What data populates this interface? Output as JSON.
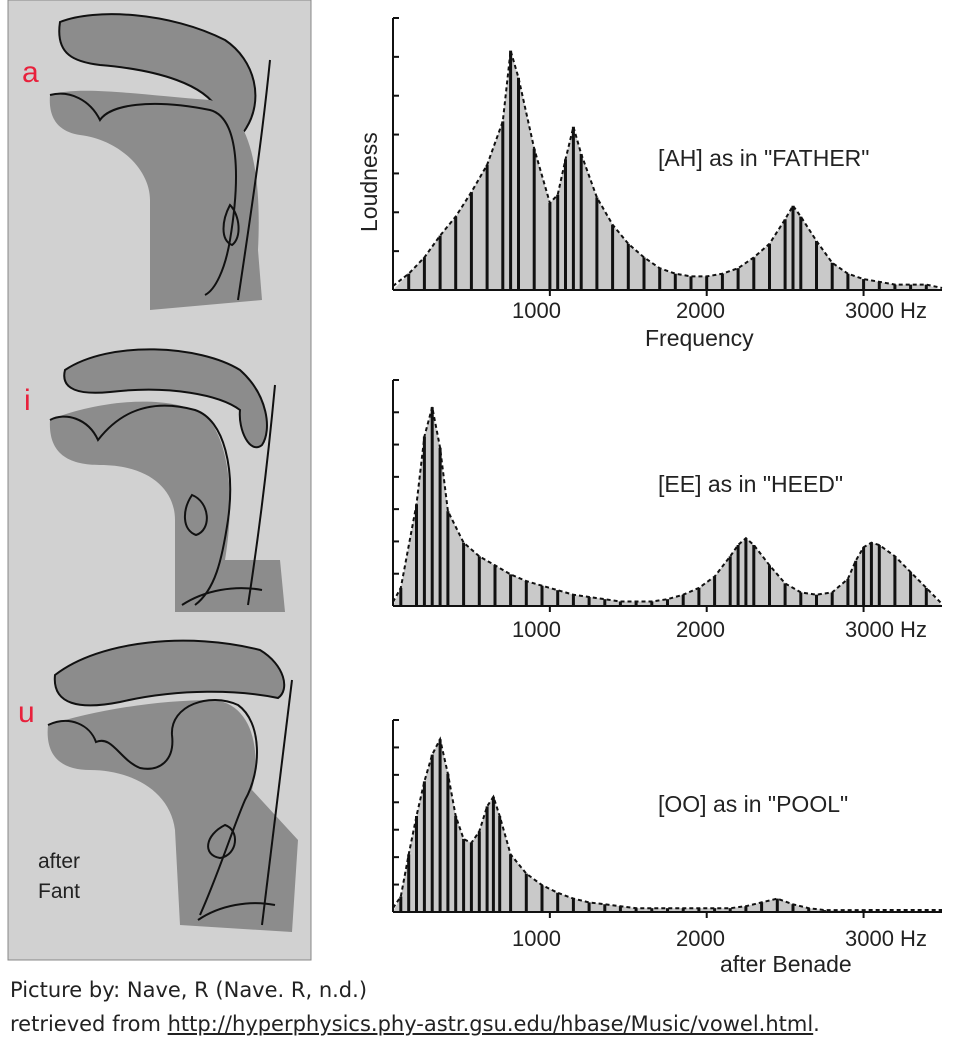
{
  "anatomy": {
    "labels": [
      "a",
      "i",
      "u"
    ],
    "credit_line1": "after",
    "credit_line2": "Fant"
  },
  "charts": {
    "x_ticks": [
      "1000",
      "2000",
      "3000 Hz"
    ],
    "y_label": "Loudness",
    "x_label": "Frequency",
    "credit": "after Benade",
    "titles": [
      "[AH] as in \"FATHER\"",
      "[EE] as in \"HEED\"",
      "[OO] as in \"POOL\""
    ]
  },
  "caption": {
    "line1": "Picture by: Nave, R  (Nave. R, n.d.)",
    "line2_prefix": "retrieved from ",
    "link": "http://hyperphysics.phy-astr.gsu.edu/hbase/Music/vowel.html",
    "line2_suffix": "."
  },
  "chart_data": [
    {
      "type": "bar",
      "title": "[AH] as in \"FATHER\"",
      "xlabel": "Frequency",
      "ylabel": "Loudness",
      "x_ticks": [
        1000,
        2000,
        3000
      ],
      "x_unit": "Hz",
      "xlim": [
        0,
        3500
      ],
      "envelope_peaks_hz": [
        750,
        1150,
        2550
      ],
      "x": [
        100,
        200,
        300,
        400,
        500,
        600,
        700,
        750,
        800,
        900,
        1000,
        1050,
        1100,
        1150,
        1200,
        1300,
        1400,
        1500,
        1600,
        1700,
        1800,
        1900,
        2000,
        2100,
        2200,
        2300,
        2400,
        2500,
        2550,
        2600,
        2700,
        2800,
        2900,
        3000,
        3100,
        3200,
        3300,
        3400
      ],
      "values": [
        0.06,
        0.12,
        0.2,
        0.27,
        0.36,
        0.46,
        0.62,
        0.88,
        0.78,
        0.52,
        0.32,
        0.35,
        0.48,
        0.6,
        0.5,
        0.34,
        0.24,
        0.17,
        0.12,
        0.08,
        0.06,
        0.05,
        0.05,
        0.06,
        0.08,
        0.12,
        0.17,
        0.26,
        0.31,
        0.27,
        0.18,
        0.1,
        0.06,
        0.04,
        0.03,
        0.02,
        0.02,
        0.02
      ]
    },
    {
      "type": "bar",
      "title": "[EE] as in \"HEED\"",
      "xlabel": "",
      "ylabel": "",
      "x_ticks": [
        1000,
        2000,
        3000
      ],
      "x_unit": "Hz",
      "xlim": [
        0,
        3500
      ],
      "envelope_peaks_hz": [
        270,
        2250,
        3000
      ],
      "x": [
        50,
        150,
        200,
        250,
        300,
        350,
        450,
        550,
        650,
        750,
        850,
        950,
        1050,
        1150,
        1250,
        1350,
        1450,
        1550,
        1650,
        1750,
        1850,
        1950,
        2050,
        2150,
        2200,
        2250,
        2300,
        2400,
        2500,
        2600,
        2700,
        2800,
        2900,
        2950,
        3000,
        3050,
        3100,
        3200,
        3300,
        3400
      ],
      "values": [
        0.08,
        0.45,
        0.75,
        0.88,
        0.7,
        0.42,
        0.28,
        0.22,
        0.18,
        0.14,
        0.11,
        0.09,
        0.07,
        0.05,
        0.04,
        0.03,
        0.02,
        0.02,
        0.02,
        0.03,
        0.05,
        0.08,
        0.13,
        0.22,
        0.27,
        0.3,
        0.27,
        0.18,
        0.1,
        0.06,
        0.05,
        0.06,
        0.12,
        0.2,
        0.26,
        0.28,
        0.27,
        0.22,
        0.15,
        0.08
      ]
    },
    {
      "type": "bar",
      "title": "[OO] as in \"POOL\"",
      "xlabel": "",
      "ylabel": "",
      "x_ticks": [
        1000,
        2000,
        3000
      ],
      "x_unit": "Hz",
      "xlim": [
        0,
        3500
      ],
      "envelope_peaks_hz": [
        300,
        640,
        2450
      ],
      "x": [
        50,
        100,
        150,
        200,
        250,
        300,
        350,
        400,
        450,
        500,
        550,
        600,
        640,
        680,
        750,
        850,
        950,
        1050,
        1150,
        1250,
        1350,
        1450,
        1550,
        1650,
        1750,
        1850,
        1950,
        2050,
        2150,
        2250,
        2350,
        2450,
        2550,
        2650,
        2750
      ],
      "values": [
        0.08,
        0.3,
        0.5,
        0.68,
        0.82,
        0.9,
        0.72,
        0.5,
        0.38,
        0.36,
        0.42,
        0.55,
        0.6,
        0.5,
        0.3,
        0.2,
        0.14,
        0.1,
        0.07,
        0.05,
        0.04,
        0.03,
        0.02,
        0.02,
        0.02,
        0.02,
        0.02,
        0.02,
        0.02,
        0.03,
        0.05,
        0.07,
        0.04,
        0.02,
        0.01
      ]
    }
  ]
}
